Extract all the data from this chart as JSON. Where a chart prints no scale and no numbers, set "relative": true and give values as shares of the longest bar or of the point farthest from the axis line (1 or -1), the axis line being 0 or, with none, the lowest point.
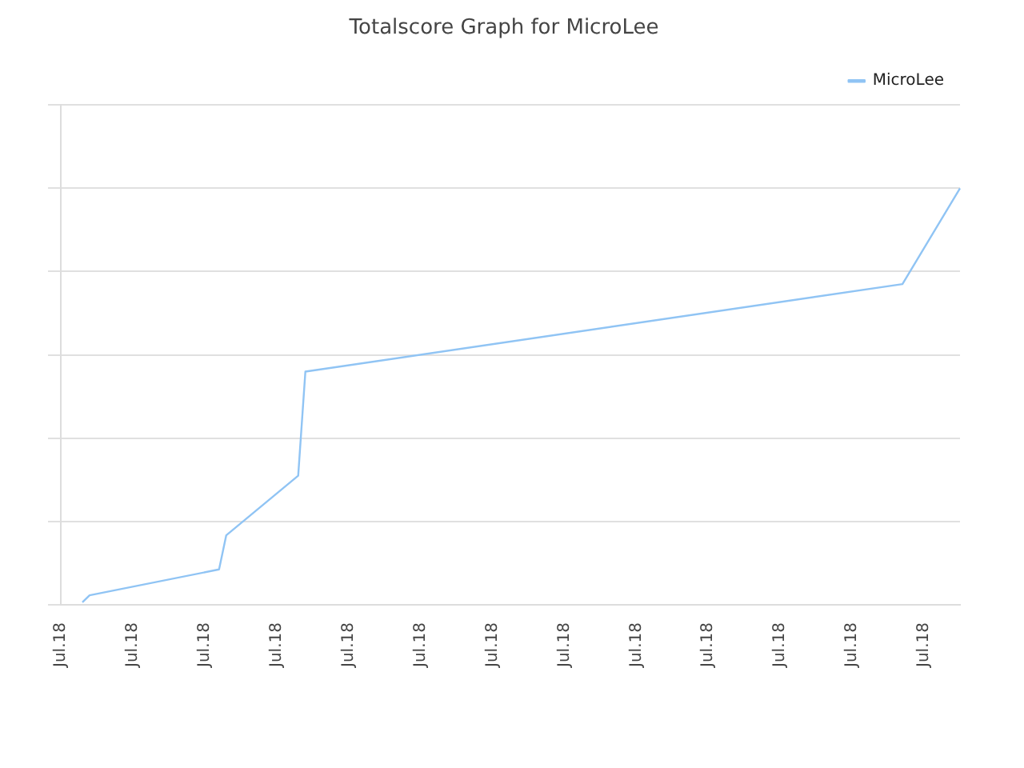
{
  "chart_data": {
    "type": "line",
    "title": "Totalscore Graph for MicroLee",
    "relative": true,
    "categories": [
      "Jul.18",
      null,
      null,
      null,
      null,
      null,
      null,
      null,
      null,
      null,
      "Jul.18",
      null,
      null,
      null,
      null,
      null,
      null,
      null,
      null,
      null,
      "Jul.18",
      null,
      null,
      null,
      null,
      null,
      null,
      null,
      null,
      null,
      "Jul.18",
      null,
      null,
      null,
      null,
      null,
      null,
      null,
      null,
      null,
      "Jul.18",
      null,
      null,
      null,
      null,
      null,
      null,
      null,
      null,
      null,
      "Jul.18",
      null,
      null,
      null,
      null,
      null,
      null,
      null,
      null,
      null,
      "Jul.18",
      null,
      null,
      null,
      null,
      null,
      null,
      null,
      null,
      null,
      "Jul.18",
      null,
      null,
      null,
      null,
      null,
      null,
      null,
      null,
      null,
      "Jul.18",
      null,
      null,
      null,
      null,
      null,
      null,
      null,
      null,
      null,
      "Jul.18",
      null,
      null,
      null,
      null,
      null,
      null,
      null,
      null,
      null,
      "Jul.18",
      null,
      null,
      null,
      null,
      null,
      null,
      null,
      null,
      null,
      "Jul.18",
      null,
      null,
      null,
      null,
      null,
      null,
      null,
      null,
      null,
      "Jul.18",
      null,
      null,
      null,
      null,
      null
    ],
    "series": [
      {
        "name": "MicroLee",
        "color": "#90c4f4",
        "values": [
          null,
          null,
          null,
          0.006,
          0.023,
          null,
          null,
          null,
          null,
          null,
          null,
          null,
          null,
          null,
          null,
          null,
          null,
          null,
          null,
          null,
          null,
          null,
          0.085,
          0.167,
          null,
          null,
          null,
          null,
          null,
          null,
          null,
          null,
          null,
          0.31,
          0.56,
          null,
          null,
          null,
          null,
          null,
          null,
          null,
          null,
          null,
          null,
          null,
          null,
          null,
          null,
          null,
          null,
          null,
          null,
          null,
          null,
          null,
          null,
          null,
          null,
          null,
          null,
          null,
          null,
          null,
          null,
          null,
          null,
          null,
          null,
          null,
          null,
          null,
          null,
          null,
          null,
          null,
          null,
          null,
          null,
          null,
          null,
          null,
          null,
          null,
          null,
          null,
          null,
          null,
          null,
          null,
          null,
          null,
          null,
          null,
          null,
          null,
          null,
          null,
          null,
          null,
          null,
          null,
          null,
          null,
          null,
          null,
          null,
          null,
          null,
          null,
          null,
          null,
          null,
          null,
          null,
          null,
          null,
          0.77,
          null,
          null,
          null,
          null,
          null,
          null,
          null,
          1
        ]
      }
    ],
    "grid": "y",
    "legend": "top right",
    "marker": "none",
    "line_style": "solid"
  }
}
